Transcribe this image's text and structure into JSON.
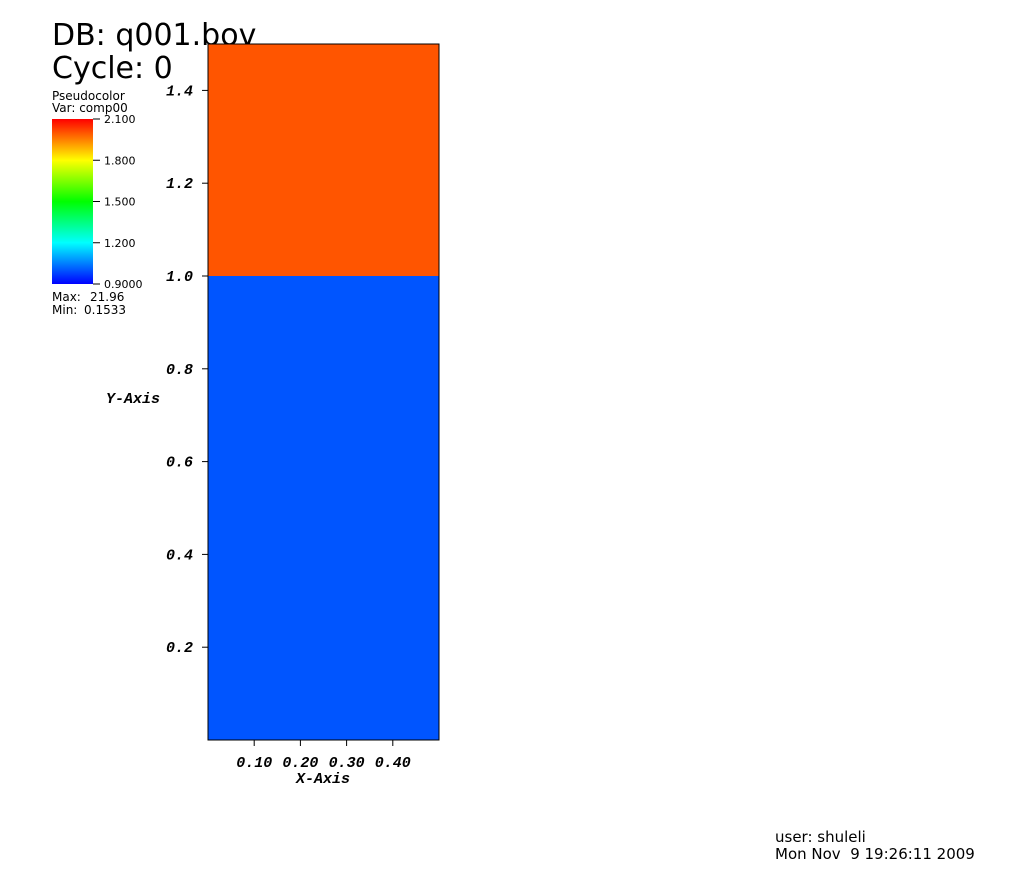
{
  "chart_data": {
    "type": "pseudocolor",
    "database": "DB: q001.bov",
    "cycle": "Cycle: 0",
    "plot_label": "Pseudocolor",
    "variable": "Var: comp00",
    "colorbar": {
      "lim": [
        0.9,
        2.1
      ],
      "colors": [
        "#0000ff",
        "#00ffff",
        "#00ff00",
        "#ffff00",
        "#ff0000"
      ],
      "ticks": [
        {
          "value": 2.1,
          "label": "2.100"
        },
        {
          "value": 1.8,
          "label": "1.800"
        },
        {
          "value": 1.5,
          "label": "1.500"
        },
        {
          "value": 1.2,
          "label": "1.200"
        },
        {
          "value": 0.9,
          "label": "0.9000"
        }
      ]
    },
    "max_label": "Max:",
    "max": 21.96,
    "min_label": "Min:",
    "min": 0.1533,
    "xlabel": "X-Axis",
    "ylabel": "Y-Axis",
    "xlim": [
      0,
      0.5
    ],
    "ylim": [
      0,
      1.5
    ],
    "xticks": [
      {
        "value": 0.1,
        "label": "0.10"
      },
      {
        "value": 0.2,
        "label": "0.20"
      },
      {
        "value": 0.3,
        "label": "0.30"
      },
      {
        "value": 0.4,
        "label": "0.40"
      }
    ],
    "yticks": [
      0.2,
      0.4,
      0.6,
      0.8,
      {
        "value": 1,
        "label": "1.0"
      },
      1.2,
      1.4
    ],
    "layers": [
      {
        "y": [
          0,
          1
        ],
        "value": 1.0
      },
      {
        "y": [
          1,
          1.5
        ],
        "value": 2.0
      }
    ],
    "user": "user: shuleli",
    "date": "Mon Nov  9 19:26:11 2009"
  }
}
